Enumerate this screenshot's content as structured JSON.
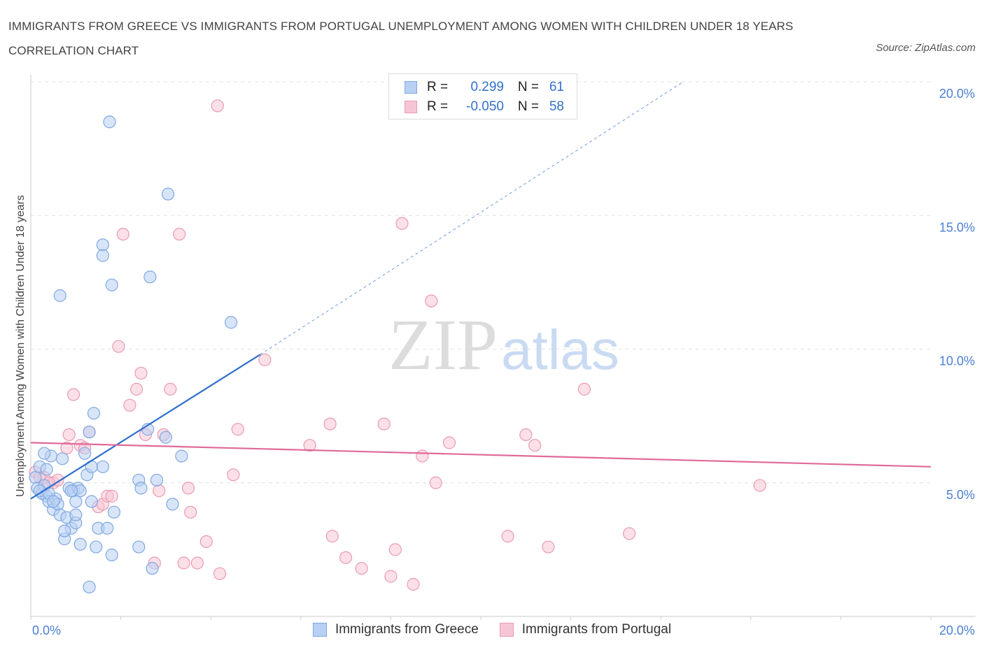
{
  "title": "IMMIGRANTS FROM GREECE VS IMMIGRANTS FROM PORTUGAL UNEMPLOYMENT AMONG WOMEN WITH CHILDREN UNDER 18 YEARS CORRELATION CHART",
  "source": "Source: ZipAtlas.com",
  "watermark": {
    "zip": "ZIP",
    "atlas": "atlas"
  },
  "legend": {
    "r_label": "R =",
    "n_label": "N =",
    "greece": {
      "r": "0.299",
      "n": "61"
    },
    "portugal": {
      "r": "-0.050",
      "n": "58"
    }
  },
  "colors": {
    "greece_fill": "#b8d0f4",
    "greece_stroke": "#7fa8e0",
    "greece_line": "#2f6fcc",
    "portugal_fill": "#f7c6d6",
    "portugal_stroke": "#eb9ab5",
    "portugal_line": "#e06a98",
    "tick_text": "#4a7fd4"
  },
  "chart_data": {
    "type": "scatter",
    "title": "IMMIGRANTS FROM GREECE VS IMMIGRANTS FROM PORTUGAL UNEMPLOYMENT AMONG WOMEN WITH CHILDREN UNDER 18 YEARS CORRELATION CHART",
    "xlabel": "",
    "ylabel": "Unemployment Among Women with Children Under 18 years",
    "xlim": [
      0,
      20
    ],
    "ylim": [
      0,
      20
    ],
    "x_tick_labels": [
      "0.0%",
      "20.0%"
    ],
    "y_ticks": [
      5,
      10,
      15,
      20
    ],
    "y_tick_labels": [
      "5.0%",
      "10.0%",
      "15.0%",
      "20.0%"
    ],
    "grid": true,
    "legend_position": "top-center",
    "series": [
      {
        "name": "Immigrants from Greece",
        "points": [
          [
            0.1,
            5.2
          ],
          [
            0.15,
            4.8
          ],
          [
            0.2,
            5.6
          ],
          [
            0.25,
            4.6
          ],
          [
            0.3,
            4.9
          ],
          [
            0.35,
            4.5
          ],
          [
            0.4,
            4.3
          ],
          [
            0.45,
            6.0
          ],
          [
            0.5,
            4.0
          ],
          [
            0.55,
            4.4
          ],
          [
            0.6,
            4.2
          ],
          [
            0.65,
            3.8
          ],
          [
            0.7,
            5.9
          ],
          [
            0.75,
            2.9
          ],
          [
            0.8,
            3.7
          ],
          [
            0.85,
            4.8
          ],
          [
            0.9,
            3.3
          ],
          [
            0.95,
            4.7
          ],
          [
            1.0,
            4.3
          ],
          [
            1.0,
            3.5
          ],
          [
            1.05,
            4.8
          ],
          [
            1.1,
            4.7
          ],
          [
            1.1,
            2.7
          ],
          [
            1.2,
            6.1
          ],
          [
            1.25,
            5.3
          ],
          [
            1.3,
            6.9
          ],
          [
            1.35,
            5.6
          ],
          [
            1.35,
            4.3
          ],
          [
            1.4,
            7.6
          ],
          [
            1.45,
            2.6
          ],
          [
            1.5,
            3.3
          ],
          [
            1.6,
            13.9
          ],
          [
            1.6,
            13.5
          ],
          [
            1.6,
            5.6
          ],
          [
            1.7,
            3.3
          ],
          [
            1.75,
            18.5
          ],
          [
            1.8,
            2.3
          ],
          [
            1.8,
            12.4
          ],
          [
            1.85,
            3.9
          ],
          [
            2.4,
            2.6
          ],
          [
            2.4,
            5.1
          ],
          [
            2.45,
            4.8
          ],
          [
            2.6,
            7.0
          ],
          [
            2.65,
            12.7
          ],
          [
            2.7,
            1.8
          ],
          [
            2.8,
            5.1
          ],
          [
            3.0,
            6.7
          ],
          [
            3.05,
            15.8
          ],
          [
            3.15,
            4.2
          ],
          [
            3.35,
            6.0
          ],
          [
            4.45,
            11.0
          ],
          [
            1.3,
            1.1
          ],
          [
            0.65,
            12.0
          ],
          [
            0.2,
            4.7
          ],
          [
            0.4,
            4.6
          ],
          [
            0.75,
            3.2
          ],
          [
            0.9,
            4.7
          ],
          [
            1.0,
            3.8
          ],
          [
            0.3,
            6.1
          ],
          [
            0.5,
            4.3
          ],
          [
            0.35,
            5.5
          ]
        ],
        "regression": {
          "x": [
            0,
            5.1
          ],
          "y": [
            4.4,
            9.8
          ],
          "dashed_extension_to": [
            14.5,
            20.0
          ]
        }
      },
      {
        "name": "Immigrants from Portugal",
        "points": [
          [
            0.1,
            5.4
          ],
          [
            0.3,
            5.2
          ],
          [
            0.5,
            5.0
          ],
          [
            0.6,
            5.1
          ],
          [
            0.8,
            6.3
          ],
          [
            0.85,
            6.8
          ],
          [
            0.95,
            8.3
          ],
          [
            1.1,
            6.4
          ],
          [
            1.2,
            6.3
          ],
          [
            1.3,
            6.9
          ],
          [
            1.5,
            4.1
          ],
          [
            1.6,
            4.2
          ],
          [
            1.7,
            4.5
          ],
          [
            1.8,
            4.5
          ],
          [
            1.95,
            10.1
          ],
          [
            2.05,
            14.3
          ],
          [
            2.2,
            7.9
          ],
          [
            2.35,
            8.5
          ],
          [
            2.45,
            9.1
          ],
          [
            2.55,
            6.8
          ],
          [
            2.75,
            2.0
          ],
          [
            2.85,
            4.7
          ],
          [
            2.95,
            6.8
          ],
          [
            3.1,
            8.5
          ],
          [
            3.3,
            14.3
          ],
          [
            3.4,
            2.0
          ],
          [
            3.5,
            4.8
          ],
          [
            3.55,
            3.9
          ],
          [
            3.7,
            2.0
          ],
          [
            3.9,
            2.8
          ],
          [
            4.15,
            19.1
          ],
          [
            4.2,
            1.6
          ],
          [
            4.5,
            5.3
          ],
          [
            4.6,
            7.0
          ],
          [
            5.2,
            9.6
          ],
          [
            6.2,
            6.4
          ],
          [
            6.65,
            7.2
          ],
          [
            6.7,
            3.0
          ],
          [
            7.0,
            2.2
          ],
          [
            7.35,
            1.8
          ],
          [
            7.85,
            7.2
          ],
          [
            8.0,
            1.5
          ],
          [
            8.1,
            2.5
          ],
          [
            8.25,
            14.7
          ],
          [
            8.5,
            1.2
          ],
          [
            8.7,
            6.0
          ],
          [
            8.9,
            11.8
          ],
          [
            9.0,
            5.0
          ],
          [
            9.3,
            6.5
          ],
          [
            10.6,
            3.0
          ],
          [
            11.0,
            6.8
          ],
          [
            11.2,
            6.4
          ],
          [
            11.5,
            2.6
          ],
          [
            12.3,
            8.5
          ],
          [
            13.3,
            3.1
          ],
          [
            16.2,
            4.9
          ],
          [
            0.2,
            5.2
          ],
          [
            0.4,
            5.0
          ]
        ],
        "regression": {
          "x": [
            0,
            20
          ],
          "y": [
            6.5,
            5.6
          ]
        }
      }
    ]
  },
  "bottom_legend": {
    "greece": "Immigrants from Greece",
    "portugal": "Immigrants from Portugal"
  }
}
